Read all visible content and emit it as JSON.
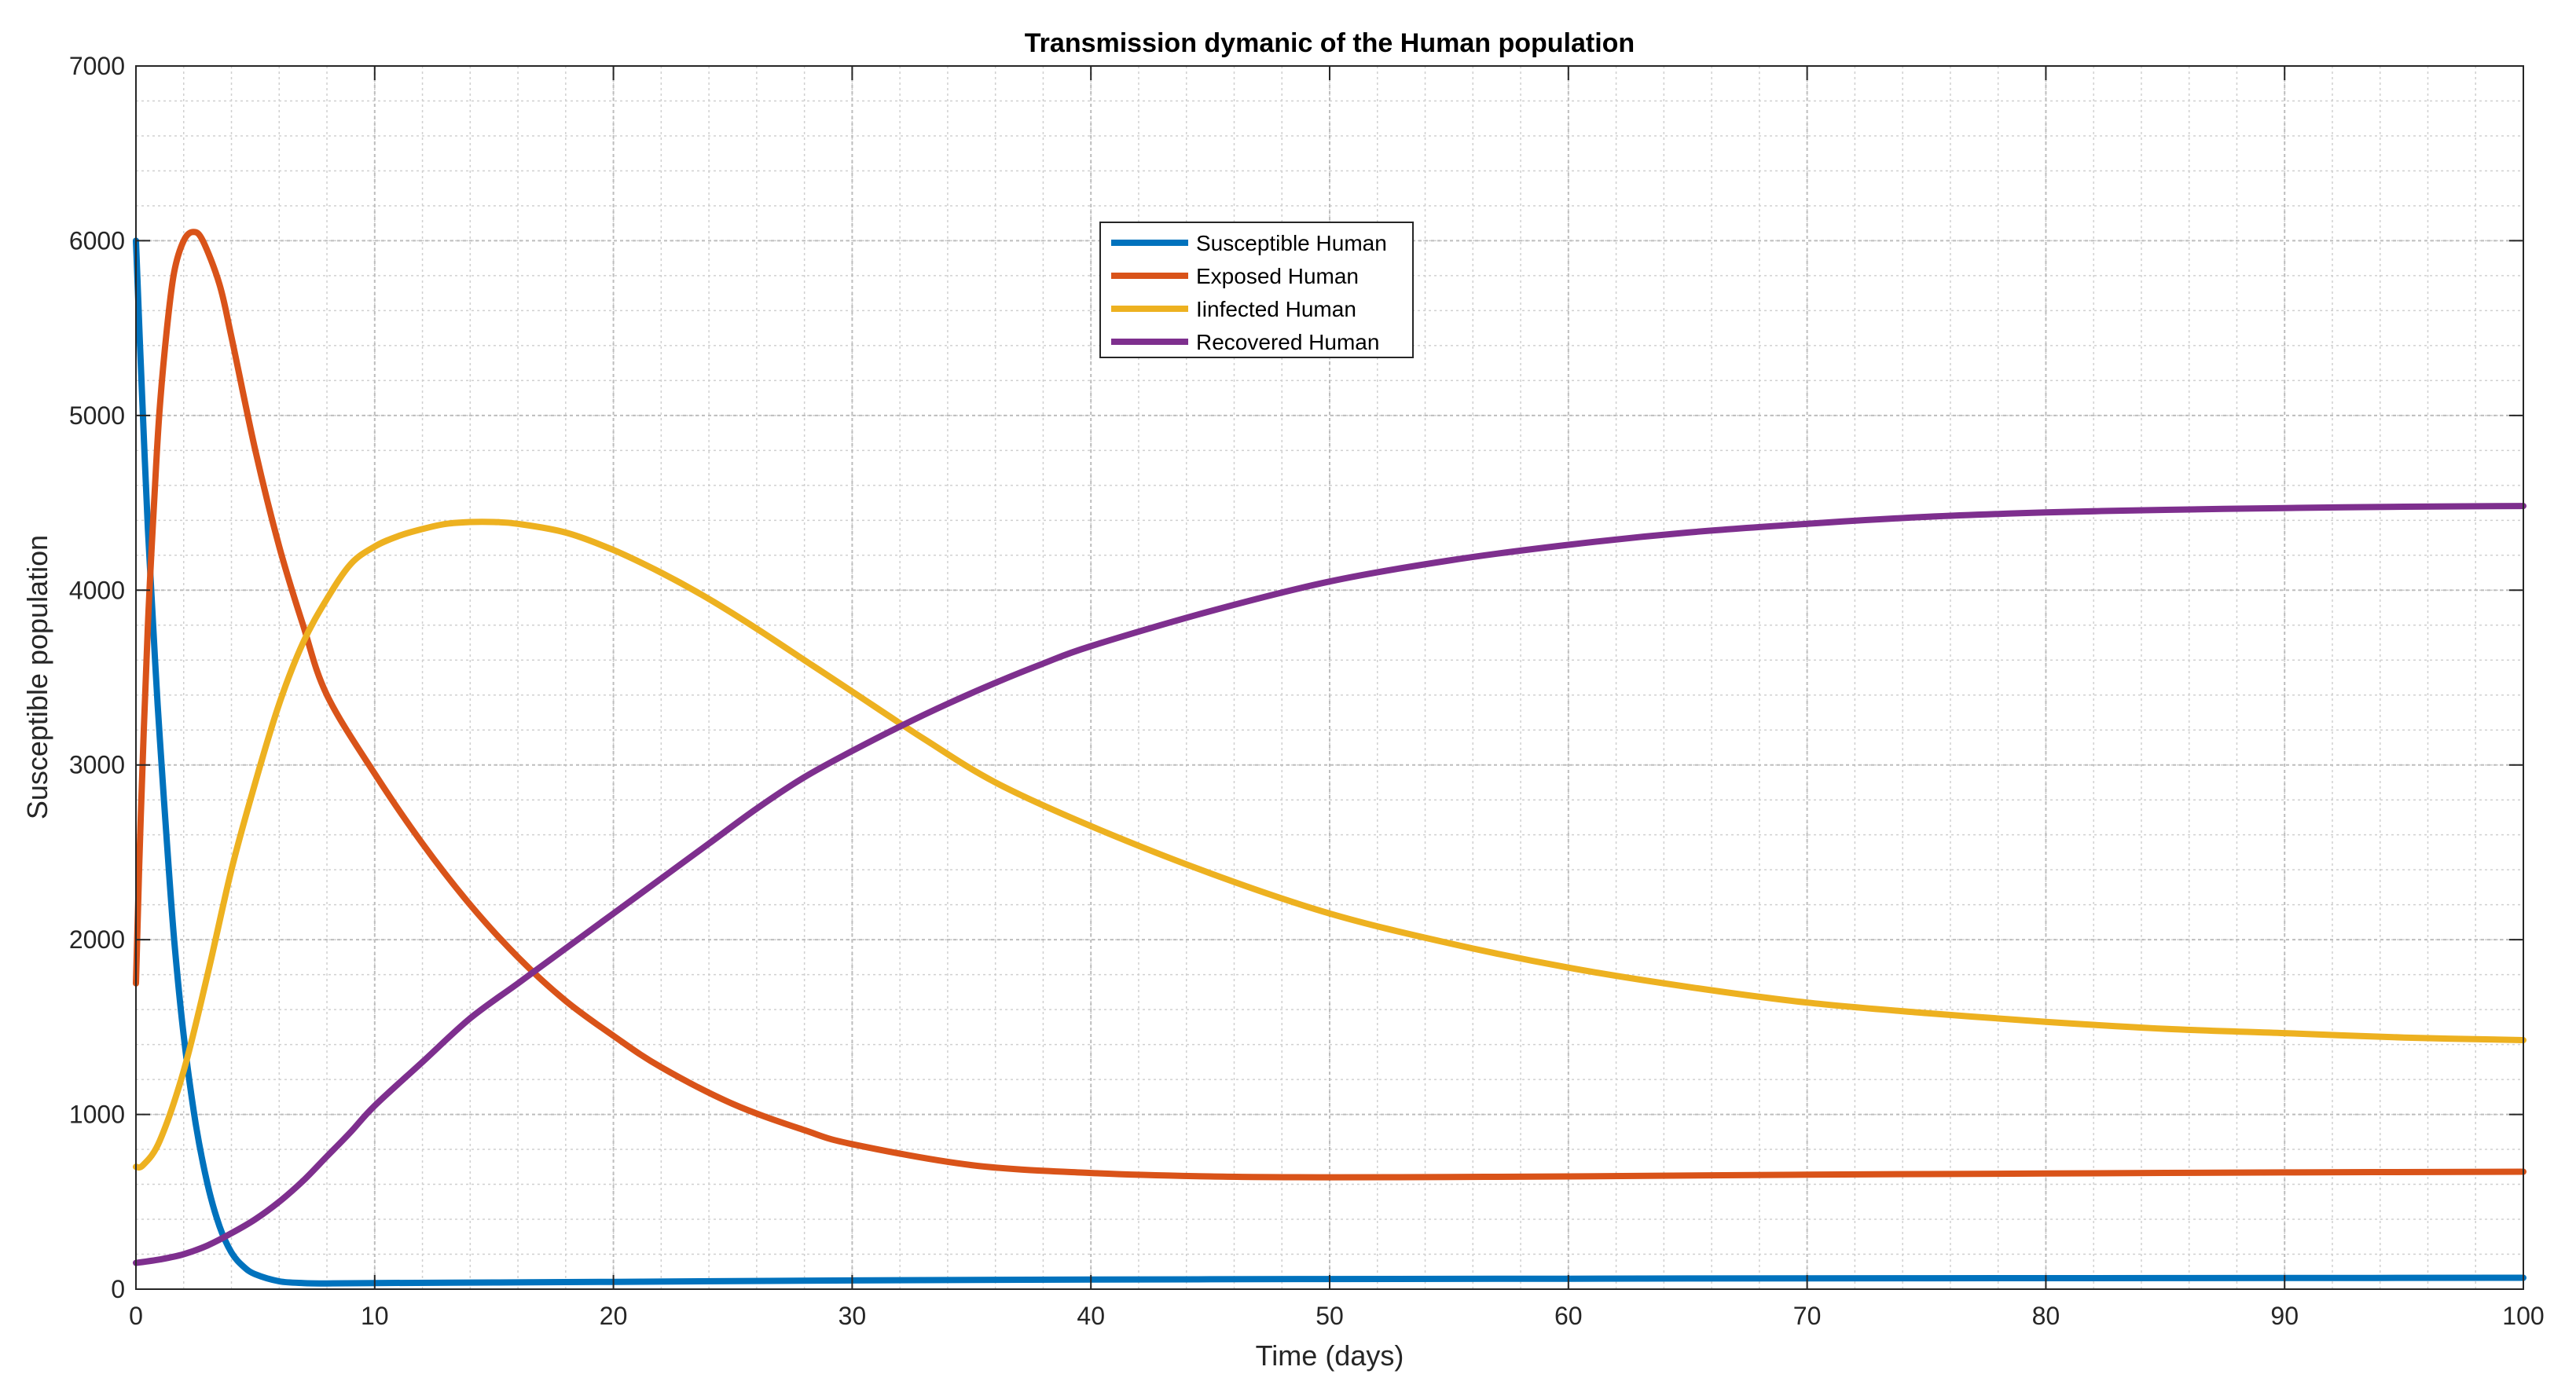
{
  "chart_data": {
    "type": "line",
    "title": "Transmission dymanic of the Human population",
    "xlabel": "Time (days)",
    "ylabel": "Susceptible population",
    "xlim": [
      0,
      100
    ],
    "ylim": [
      0,
      7000
    ],
    "xticks": [
      0,
      10,
      20,
      30,
      40,
      50,
      60,
      70,
      80,
      90,
      100
    ],
    "yticks": [
      0,
      1000,
      2000,
      3000,
      4000,
      5000,
      6000,
      7000
    ],
    "grid": true,
    "minor_grid": true,
    "legend_position": "top-center",
    "series": [
      {
        "name": "Susceptible Human",
        "color": "#0072BD",
        "points": [
          [
            0,
            6000
          ],
          [
            0.2,
            5300
          ],
          [
            0.5,
            4350
          ],
          [
            0.8,
            3600
          ],
          [
            1,
            3150
          ],
          [
            1.3,
            2550
          ],
          [
            1.6,
            2000
          ],
          [
            2,
            1450
          ],
          [
            2.5,
            950
          ],
          [
            3,
            600
          ],
          [
            3.5,
            360
          ],
          [
            4,
            210
          ],
          [
            4.5,
            130
          ],
          [
            5,
            85
          ],
          [
            6,
            45
          ],
          [
            7,
            35
          ],
          [
            8,
            33
          ],
          [
            10,
            35
          ],
          [
            15,
            38
          ],
          [
            20,
            42
          ],
          [
            30,
            50
          ],
          [
            40,
            55
          ],
          [
            50,
            58
          ],
          [
            60,
            60
          ],
          [
            70,
            62
          ],
          [
            80,
            63
          ],
          [
            90,
            64
          ],
          [
            100,
            65
          ]
        ]
      },
      {
        "name": "Exposed Human",
        "color": "#D95319",
        "points": [
          [
            0,
            1750
          ],
          [
            0.2,
            2700
          ],
          [
            0.5,
            3800
          ],
          [
            0.8,
            4600
          ],
          [
            1,
            5050
          ],
          [
            1.3,
            5500
          ],
          [
            1.6,
            5820
          ],
          [
            2,
            6000
          ],
          [
            2.4,
            6050
          ],
          [
            2.8,
            6000
          ],
          [
            3.5,
            5750
          ],
          [
            4,
            5450
          ],
          [
            5,
            4800
          ],
          [
            6,
            4250
          ],
          [
            7,
            3800
          ],
          [
            8,
            3400
          ],
          [
            10,
            2950
          ],
          [
            12,
            2550
          ],
          [
            14,
            2200
          ],
          [
            16,
            1900
          ],
          [
            18,
            1650
          ],
          [
            20,
            1450
          ],
          [
            22,
            1270
          ],
          [
            25,
            1060
          ],
          [
            28,
            910
          ],
          [
            30,
            830
          ],
          [
            35,
            710
          ],
          [
            40,
            665
          ],
          [
            45,
            645
          ],
          [
            50,
            640
          ],
          [
            55,
            642
          ],
          [
            60,
            645
          ],
          [
            70,
            655
          ],
          [
            80,
            662
          ],
          [
            90,
            668
          ],
          [
            100,
            672
          ]
        ]
      },
      {
        "name": "Iinfected Human",
        "color": "#EDB120",
        "points": [
          [
            0,
            700
          ],
          [
            0.3,
            710
          ],
          [
            1,
            850
          ],
          [
            2,
            1250
          ],
          [
            3,
            1800
          ],
          [
            4,
            2400
          ],
          [
            5,
            2900
          ],
          [
            6,
            3350
          ],
          [
            7,
            3700
          ],
          [
            8,
            3950
          ],
          [
            9,
            4150
          ],
          [
            10,
            4250
          ],
          [
            11,
            4310
          ],
          [
            12,
            4350
          ],
          [
            13,
            4380
          ],
          [
            14,
            4390
          ],
          [
            15,
            4390
          ],
          [
            16,
            4380
          ],
          [
            18,
            4330
          ],
          [
            20,
            4230
          ],
          [
            22,
            4100
          ],
          [
            24,
            3950
          ],
          [
            26,
            3780
          ],
          [
            28,
            3600
          ],
          [
            30,
            3420
          ],
          [
            33,
            3150
          ],
          [
            36,
            2900
          ],
          [
            40,
            2650
          ],
          [
            45,
            2380
          ],
          [
            50,
            2150
          ],
          [
            55,
            1980
          ],
          [
            60,
            1840
          ],
          [
            65,
            1730
          ],
          [
            70,
            1640
          ],
          [
            75,
            1580
          ],
          [
            80,
            1530
          ],
          [
            85,
            1490
          ],
          [
            90,
            1465
          ],
          [
            95,
            1440
          ],
          [
            100,
            1425
          ]
        ]
      },
      {
        "name": "Recovered Human",
        "color": "#7E2F8E",
        "points": [
          [
            0,
            150
          ],
          [
            1,
            170
          ],
          [
            2,
            200
          ],
          [
            3,
            250
          ],
          [
            4,
            320
          ],
          [
            5,
            400
          ],
          [
            6,
            500
          ],
          [
            7,
            620
          ],
          [
            8,
            760
          ],
          [
            9,
            900
          ],
          [
            10,
            1050
          ],
          [
            12,
            1300
          ],
          [
            14,
            1550
          ],
          [
            16,
            1750
          ],
          [
            18,
            1950
          ],
          [
            20,
            2150
          ],
          [
            22,
            2350
          ],
          [
            24,
            2550
          ],
          [
            26,
            2750
          ],
          [
            28,
            2930
          ],
          [
            30,
            3080
          ],
          [
            32,
            3220
          ],
          [
            34,
            3350
          ],
          [
            36,
            3470
          ],
          [
            38,
            3580
          ],
          [
            40,
            3680
          ],
          [
            45,
            3880
          ],
          [
            50,
            4050
          ],
          [
            55,
            4170
          ],
          [
            60,
            4260
          ],
          [
            65,
            4330
          ],
          [
            70,
            4380
          ],
          [
            75,
            4420
          ],
          [
            80,
            4445
          ],
          [
            85,
            4460
          ],
          [
            90,
            4470
          ],
          [
            95,
            4478
          ],
          [
            100,
            4482
          ]
        ]
      }
    ]
  }
}
